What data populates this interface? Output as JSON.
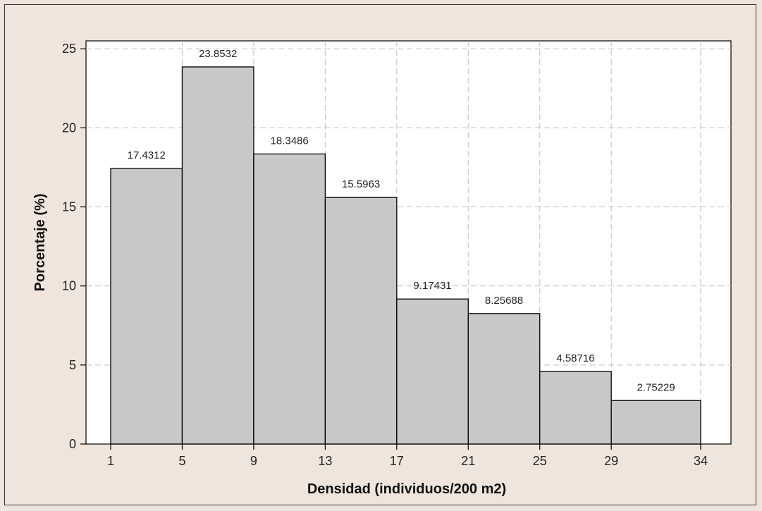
{
  "chart_data": {
    "type": "bar",
    "subtype": "histogram",
    "xlabel": "Densidad (individuos/200 m2)",
    "ylabel": "Porcentaje (%)",
    "bin_edges": [
      1,
      5,
      9,
      13,
      17,
      21,
      25,
      29,
      34
    ],
    "x_tick_labels": [
      "1",
      "5",
      "9",
      "13",
      "17",
      "21",
      "25",
      "29",
      "34"
    ],
    "values": [
      17.4312,
      23.8532,
      18.3486,
      15.5963,
      9.17431,
      8.25688,
      4.58716,
      2.75229
    ],
    "data_labels": [
      "17.4312",
      "23.8532",
      "18.3486",
      "15.5963",
      "9.17431",
      "8.25688",
      "4.58716",
      "2.75229"
    ],
    "y_ticks": [
      0,
      5,
      10,
      15,
      20,
      25
    ],
    "y_tick_labels": [
      "0",
      "5",
      "10",
      "15",
      "20",
      "25"
    ],
    "ylim": [
      0,
      25.5
    ],
    "grid": true,
    "grid_style": "dashed",
    "colors": {
      "bar_fill": "#c8c8c8",
      "bar_edge": "#000000",
      "plot_bg": "#ffffff",
      "page_bg": "#efe5dd",
      "grid": "#bdbdbd"
    }
  }
}
